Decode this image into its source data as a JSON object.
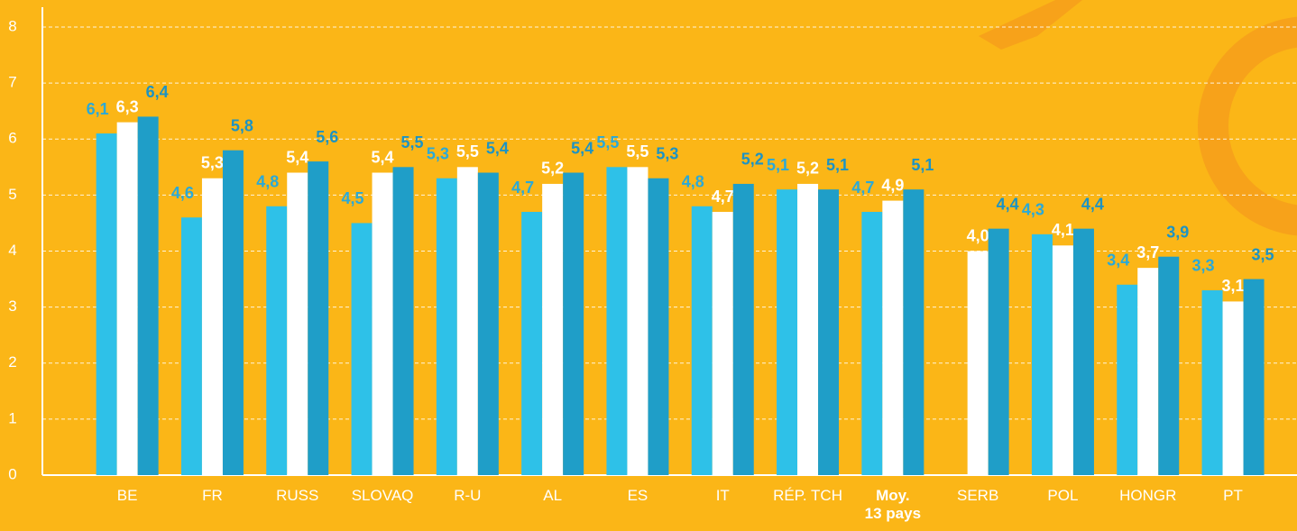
{
  "chart_data": {
    "type": "bar",
    "categories": [
      "BE",
      "FR",
      "RUSS",
      "SLOVAQ",
      "R-U",
      "AL",
      "ES",
      "IT",
      "RÉP. TCH",
      "Moy.\n13 pays",
      "SERB",
      "POL",
      "HONGR",
      "PT"
    ],
    "emphasis_index": 9,
    "series": [
      {
        "color": "#2ec1e8",
        "label_color": "#2aa9d8",
        "values": [
          6.1,
          4.6,
          4.8,
          4.5,
          5.3,
          4.7,
          5.5,
          4.8,
          5.1,
          4.7,
          null,
          4.3,
          3.4,
          3.3
        ],
        "value_labels": [
          "6,1",
          "4,6",
          "4,8",
          "4,5",
          "5,3",
          "4,7",
          "5,5",
          "4,8",
          "5,1",
          "4,7",
          null,
          "4,3",
          "3,4",
          "3,3"
        ]
      },
      {
        "color": "#ffffff",
        "label_color": "#ffffff",
        "values": [
          6.3,
          5.3,
          5.4,
          5.4,
          5.5,
          5.2,
          5.5,
          4.7,
          5.2,
          4.9,
          4.0,
          4.1,
          3.7,
          3.1
        ],
        "value_labels": [
          "6,3",
          "5,3",
          "5,4",
          "5,4",
          "5,5",
          "5,2",
          "5,5",
          "4,7",
          "5,2",
          "4,9",
          "4,0",
          "4,1",
          "3,7",
          "3,1"
        ]
      },
      {
        "color": "#1f9ec8",
        "label_color": "#1c93c4",
        "values": [
          6.4,
          5.8,
          5.6,
          5.5,
          5.4,
          5.4,
          5.3,
          5.2,
          5.1,
          5.1,
          4.4,
          4.4,
          3.9,
          3.5
        ],
        "value_labels": [
          "6,4",
          "5,8",
          "5,6",
          "5,5",
          "5,4",
          "5,4",
          "5,3",
          "5,2",
          "5,1",
          "5,1",
          "4,4",
          "4,4",
          "3,9",
          "3,5"
        ]
      }
    ],
    "ylim": [
      0,
      8
    ],
    "yticks": [
      0,
      1,
      2,
      3,
      4,
      5,
      6,
      7,
      8
    ],
    "grid": true
  }
}
